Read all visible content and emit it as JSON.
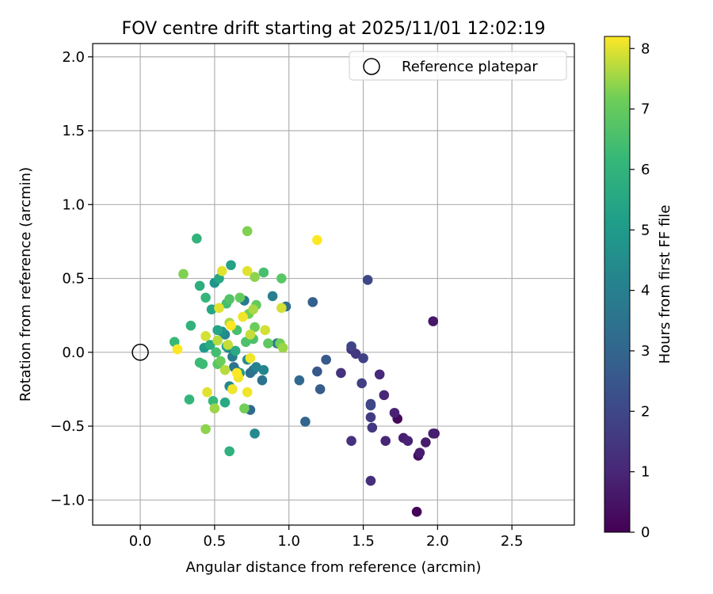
{
  "chart_data": {
    "type": "scatter",
    "title": "FOV centre drift starting at 2025/11/01 12:02:19",
    "xlabel": "Angular distance from reference (arcmin)",
    "ylabel": "Rotation from reference (arcmin)",
    "xlim": [
      -0.32,
      2.92
    ],
    "ylim": [
      -1.17,
      2.09
    ],
    "xticks": [
      0.0,
      0.5,
      1.0,
      1.5,
      2.0,
      2.5
    ],
    "xtick_labels": [
      "0.0",
      "0.5",
      "1.0",
      "1.5",
      "2.0",
      "2.5"
    ],
    "yticks": [
      -1.0,
      -0.5,
      0.0,
      0.5,
      1.0,
      1.5,
      2.0
    ],
    "ytick_labels": [
      "−1.0",
      "−0.5",
      "0.0",
      "0.5",
      "1.0",
      "1.5",
      "2.0"
    ],
    "grid": true,
    "legend": {
      "position": "top-right",
      "entries": [
        "Reference platepar"
      ]
    },
    "reference_point": {
      "x": 0.0,
      "y": 0.0,
      "label": "Reference platepar"
    },
    "colorbar": {
      "label": "Hours from first FF file",
      "range": [
        0,
        8.2
      ],
      "ticks": [
        0,
        1,
        2,
        3,
        4,
        5,
        6,
        7,
        8
      ],
      "tick_labels": [
        "0",
        "1",
        "2",
        "3",
        "4",
        "5",
        "6",
        "7",
        "8"
      ],
      "colormap": "viridis"
    },
    "points": [
      {
        "x": 1.86,
        "y": -1.08,
        "h": 0.1
      },
      {
        "x": 1.73,
        "y": -0.45,
        "h": 0.2
      },
      {
        "x": 1.87,
        "y": -0.7,
        "h": 0.3
      },
      {
        "x": 1.97,
        "y": 0.21,
        "h": 0.6
      },
      {
        "x": 1.98,
        "y": -0.55,
        "h": 0.6
      },
      {
        "x": 1.88,
        "y": -0.68,
        "h": 0.7
      },
      {
        "x": 1.92,
        "y": -0.61,
        "h": 0.7
      },
      {
        "x": 1.97,
        "y": -0.55,
        "h": 0.8
      },
      {
        "x": 1.77,
        "y": -0.58,
        "h": 0.8
      },
      {
        "x": 1.8,
        "y": -0.6,
        "h": 0.9
      },
      {
        "x": 1.71,
        "y": -0.41,
        "h": 0.9
      },
      {
        "x": 1.65,
        "y": -0.6,
        "h": 1.0
      },
      {
        "x": 1.64,
        "y": -0.29,
        "h": 1.0
      },
      {
        "x": 1.61,
        "y": -0.15,
        "h": 1.1
      },
      {
        "x": 1.55,
        "y": -0.87,
        "h": 1.2
      },
      {
        "x": 1.42,
        "y": -0.6,
        "h": 1.3
      },
      {
        "x": 1.35,
        "y": -0.14,
        "h": 1.3
      },
      {
        "x": 1.42,
        "y": 0.02,
        "h": 1.4
      },
      {
        "x": 1.45,
        "y": -0.01,
        "h": 1.5
      },
      {
        "x": 1.56,
        "y": -0.51,
        "h": 1.5
      },
      {
        "x": 1.55,
        "y": -0.44,
        "h": 1.6
      },
      {
        "x": 1.55,
        "y": -0.35,
        "h": 1.7
      },
      {
        "x": 1.49,
        "y": -0.21,
        "h": 1.7
      },
      {
        "x": 1.5,
        "y": -0.04,
        "h": 1.8
      },
      {
        "x": 1.42,
        "y": 0.04,
        "h": 1.9
      },
      {
        "x": 1.53,
        "y": 0.49,
        "h": 2.0
      },
      {
        "x": 1.55,
        "y": -0.36,
        "h": 2.0
      },
      {
        "x": 1.19,
        "y": -0.13,
        "h": 2.5
      },
      {
        "x": 1.25,
        "y": -0.05,
        "h": 2.6
      },
      {
        "x": 1.21,
        "y": -0.25,
        "h": 2.7
      },
      {
        "x": 1.16,
        "y": 0.34,
        "h": 2.8
      },
      {
        "x": 1.11,
        "y": -0.47,
        "h": 3.0
      },
      {
        "x": 1.07,
        "y": -0.19,
        "h": 3.1
      },
      {
        "x": 0.74,
        "y": -0.39,
        "h": 3.2
      },
      {
        "x": 0.98,
        "y": 0.31,
        "h": 3.3
      },
      {
        "x": 0.74,
        "y": -0.14,
        "h": 3.4
      },
      {
        "x": 0.76,
        "y": -0.12,
        "h": 3.5
      },
      {
        "x": 0.82,
        "y": -0.19,
        "h": 3.5
      },
      {
        "x": 0.63,
        "y": -0.1,
        "h": 3.6
      },
      {
        "x": 0.65,
        "y": -0.13,
        "h": 3.7
      },
      {
        "x": 0.92,
        "y": 0.06,
        "h": 3.7
      },
      {
        "x": 0.7,
        "y": 0.35,
        "h": 3.8
      },
      {
        "x": 0.89,
        "y": 0.38,
        "h": 3.9
      },
      {
        "x": 0.59,
        "y": 0.03,
        "h": 3.9
      },
      {
        "x": 0.62,
        "y": -0.03,
        "h": 4.0
      },
      {
        "x": 0.78,
        "y": -0.1,
        "h": 4.1
      },
      {
        "x": 0.83,
        "y": -0.12,
        "h": 4.2
      },
      {
        "x": 0.57,
        "y": 0.12,
        "h": 4.3
      },
      {
        "x": 0.6,
        "y": -0.23,
        "h": 4.3
      },
      {
        "x": 0.77,
        "y": -0.55,
        "h": 4.4
      },
      {
        "x": 0.72,
        "y": -0.05,
        "h": 4.5
      },
      {
        "x": 0.55,
        "y": 0.14,
        "h": 4.6
      },
      {
        "x": 0.5,
        "y": 0.47,
        "h": 4.8
      },
      {
        "x": 0.43,
        "y": 0.03,
        "h": 5.0
      },
      {
        "x": 0.67,
        "y": -0.14,
        "h": 5.1
      },
      {
        "x": 0.58,
        "y": 0.04,
        "h": 5.2
      },
      {
        "x": 0.61,
        "y": 0.59,
        "h": 5.3
      },
      {
        "x": 0.52,
        "y": 0.15,
        "h": 5.4
      },
      {
        "x": 0.48,
        "y": 0.29,
        "h": 5.4
      },
      {
        "x": 0.53,
        "y": 0.5,
        "h": 5.5
      },
      {
        "x": 0.57,
        "y": -0.34,
        "h": 5.6
      },
      {
        "x": 0.64,
        "y": 0.01,
        "h": 5.6
      },
      {
        "x": 0.47,
        "y": 0.05,
        "h": 5.7
      },
      {
        "x": 0.4,
        "y": 0.45,
        "h": 5.8
      },
      {
        "x": 0.6,
        "y": -0.67,
        "h": 5.9
      },
      {
        "x": 0.38,
        "y": 0.77,
        "h": 6.0
      },
      {
        "x": 0.34,
        "y": 0.18,
        "h": 6.0
      },
      {
        "x": 0.33,
        "y": -0.32,
        "h": 6.1
      },
      {
        "x": 0.44,
        "y": 0.37,
        "h": 6.1
      },
      {
        "x": 0.49,
        "y": -0.33,
        "h": 6.2
      },
      {
        "x": 0.23,
        "y": 0.07,
        "h": 6.2
      },
      {
        "x": 0.42,
        "y": -0.08,
        "h": 6.3
      },
      {
        "x": 0.4,
        "y": -0.07,
        "h": 6.3
      },
      {
        "x": 0.51,
        "y": 0.0,
        "h": 6.4
      },
      {
        "x": 0.58,
        "y": 0.33,
        "h": 6.4
      },
      {
        "x": 0.65,
        "y": 0.15,
        "h": 6.5
      },
      {
        "x": 0.83,
        "y": 0.54,
        "h": 6.5
      },
      {
        "x": 0.76,
        "y": 0.09,
        "h": 6.6
      },
      {
        "x": 0.71,
        "y": 0.07,
        "h": 6.6
      },
      {
        "x": 0.6,
        "y": 0.36,
        "h": 6.7
      },
      {
        "x": 0.95,
        "y": 0.5,
        "h": 6.8
      },
      {
        "x": 0.52,
        "y": -0.08,
        "h": 6.8
      },
      {
        "x": 0.86,
        "y": 0.06,
        "h": 6.9
      },
      {
        "x": 0.78,
        "y": 0.32,
        "h": 7.0
      },
      {
        "x": 0.67,
        "y": 0.37,
        "h": 7.0
      },
      {
        "x": 0.77,
        "y": 0.17,
        "h": 7.1
      },
      {
        "x": 0.54,
        "y": -0.06,
        "h": 7.1
      },
      {
        "x": 0.73,
        "y": 0.26,
        "h": 7.2
      },
      {
        "x": 0.94,
        "y": 0.06,
        "h": 7.2
      },
      {
        "x": 0.7,
        "y": -0.38,
        "h": 7.2
      },
      {
        "x": 0.29,
        "y": 0.53,
        "h": 7.3
      },
      {
        "x": 0.72,
        "y": 0.82,
        "h": 7.3
      },
      {
        "x": 0.77,
        "y": 0.51,
        "h": 7.4
      },
      {
        "x": 0.44,
        "y": -0.52,
        "h": 7.4
      },
      {
        "x": 0.5,
        "y": -0.38,
        "h": 7.5
      },
      {
        "x": 0.96,
        "y": 0.03,
        "h": 7.5
      },
      {
        "x": 0.76,
        "y": 0.29,
        "h": 7.6
      },
      {
        "x": 0.6,
        "y": 0.2,
        "h": 7.6
      },
      {
        "x": 0.52,
        "y": 0.08,
        "h": 7.7
      },
      {
        "x": 0.57,
        "y": -0.12,
        "h": 7.7
      },
      {
        "x": 0.74,
        "y": 0.12,
        "h": 7.8
      },
      {
        "x": 0.59,
        "y": 0.05,
        "h": 7.8
      },
      {
        "x": 0.84,
        "y": 0.15,
        "h": 7.9
      },
      {
        "x": 0.44,
        "y": 0.11,
        "h": 7.9
      },
      {
        "x": 0.95,
        "y": 0.3,
        "h": 7.9
      },
      {
        "x": 0.45,
        "y": -0.27,
        "h": 8.0
      },
      {
        "x": 0.55,
        "y": 0.55,
        "h": 8.0
      },
      {
        "x": 0.72,
        "y": 0.55,
        "h": 8.0
      },
      {
        "x": 0.53,
        "y": 0.3,
        "h": 8.0
      },
      {
        "x": 0.62,
        "y": -0.25,
        "h": 8.1
      },
      {
        "x": 0.69,
        "y": 0.24,
        "h": 8.1
      },
      {
        "x": 0.72,
        "y": -0.27,
        "h": 8.1
      },
      {
        "x": 0.74,
        "y": -0.04,
        "h": 8.1
      },
      {
        "x": 0.66,
        "y": -0.17,
        "h": 8.1
      },
      {
        "x": 1.19,
        "y": 0.76,
        "h": 8.2
      },
      {
        "x": 0.25,
        "y": 0.02,
        "h": 8.2
      },
      {
        "x": 0.61,
        "y": 0.18,
        "h": 8.2
      },
      {
        "x": 0.65,
        "y": -0.14,
        "h": 8.2
      }
    ]
  }
}
